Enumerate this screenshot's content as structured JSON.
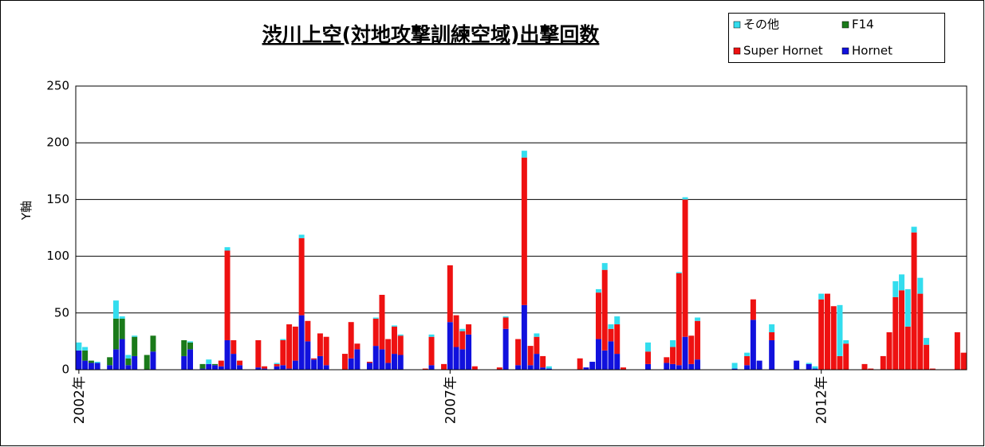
{
  "chart_data": {
    "type": "stacked-bar",
    "title": "渋川上空(対地攻撃訓練空域)出撃回数",
    "y_label": "Y軸",
    "categories": [
      "2002年",
      null,
      null,
      null,
      null,
      null,
      null,
      null,
      null,
      null,
      null,
      null,
      null,
      null,
      null,
      null,
      null,
      null,
      null,
      null,
      null,
      null,
      null,
      null,
      null,
      null,
      null,
      null,
      null,
      null,
      null,
      null,
      null,
      null,
      null,
      null,
      null,
      null,
      null,
      null,
      null,
      null,
      null,
      null,
      null,
      null,
      null,
      null,
      null,
      null,
      null,
      null,
      null,
      null,
      null,
      null,
      null,
      null,
      null,
      null,
      "2007年",
      null,
      null,
      null,
      null,
      null,
      null,
      null,
      null,
      null,
      null,
      null,
      null,
      null,
      null,
      null,
      null,
      null,
      null,
      null,
      null,
      null,
      null,
      null,
      null,
      null,
      null,
      null,
      null,
      null,
      null,
      null,
      null,
      null,
      null,
      null,
      null,
      null,
      null,
      null,
      null,
      null,
      null,
      null,
      null,
      null,
      null,
      null,
      null,
      null,
      null,
      null,
      null,
      null,
      null,
      null,
      null,
      null,
      null,
      null,
      "2012年",
      null,
      null,
      null,
      null,
      null,
      null,
      null,
      null,
      null,
      null,
      null,
      null,
      null,
      null,
      null,
      null,
      null,
      null,
      null,
      null,
      null,
      null,
      null
    ],
    "series": [
      {
        "name": "その他",
        "color": "#33ddee",
        "values": [
          7,
          3,
          0,
          1,
          0,
          0,
          16,
          2,
          3,
          1,
          0,
          0,
          0,
          0,
          0,
          0,
          0,
          0,
          1,
          0,
          0,
          4,
          0,
          0,
          3,
          0,
          0,
          0,
          0,
          0,
          0,
          0,
          1,
          1,
          0,
          0,
          3,
          0,
          0,
          0,
          0,
          0,
          0,
          0,
          0,
          0,
          0,
          0,
          1,
          0,
          0,
          1,
          1,
          0,
          0,
          0,
          0,
          2,
          0,
          0,
          0,
          0,
          2,
          0,
          0,
          0,
          0,
          0,
          0,
          1,
          0,
          0,
          6,
          0,
          3,
          0,
          2,
          0,
          0,
          0,
          0,
          0,
          0,
          0,
          3,
          6,
          4,
          7,
          0,
          0,
          0,
          0,
          8,
          0,
          0,
          0,
          6,
          1,
          2,
          0,
          3,
          0,
          0,
          0,
          0,
          0,
          5,
          0,
          3,
          0,
          0,
          0,
          7,
          0,
          0,
          0,
          0,
          0,
          1,
          2,
          5,
          0,
          0,
          45,
          3,
          0,
          0,
          0,
          0,
          0,
          0,
          0,
          14,
          14,
          33,
          5,
          14,
          6,
          0,
          0,
          0,
          0,
          0,
          0
        ]
      },
      {
        "name": "F14",
        "color": "#1a7a1a",
        "values": [
          0,
          9,
          2,
          0,
          0,
          7,
          27,
          18,
          6,
          17,
          0,
          13,
          14,
          0,
          0,
          0,
          0,
          14,
          6,
          0,
          4,
          0,
          1,
          0,
          0,
          0,
          0,
          0,
          0,
          0,
          0,
          0,
          0,
          0,
          0,
          0,
          0,
          0,
          0,
          0,
          0,
          0,
          0,
          0,
          0,
          0,
          0,
          0,
          0,
          0,
          0,
          0,
          0,
          0,
          0,
          0,
          0,
          0,
          0,
          0,
          0,
          0,
          0,
          0,
          0,
          0,
          0,
          0,
          0,
          0,
          0,
          0,
          0,
          0,
          0,
          0,
          0,
          0,
          0,
          0,
          0,
          0,
          0,
          0,
          0,
          0,
          0,
          0,
          0,
          0,
          0,
          0,
          0,
          0,
          0,
          0,
          0,
          0,
          0,
          0,
          0,
          0,
          0,
          0,
          0,
          0,
          0,
          0,
          0,
          0,
          0,
          0,
          0,
          0,
          0,
          0,
          0,
          0,
          0,
          0,
          0,
          0,
          0,
          0,
          0,
          0,
          0,
          0,
          0,
          0,
          0,
          0,
          0,
          0,
          0,
          0,
          0,
          0,
          0,
          0,
          0,
          0,
          0,
          0
        ]
      },
      {
        "name": "Super Hornet",
        "color": "#ee1111",
        "values": [
          0,
          0,
          0,
          0,
          0,
          0,
          0,
          0,
          0,
          0,
          0,
          0,
          0,
          0,
          0,
          0,
          0,
          0,
          0,
          0,
          0,
          0,
          0,
          5,
          79,
          12,
          4,
          0,
          0,
          24,
          2,
          0,
          2,
          22,
          39,
          30,
          68,
          18,
          1,
          20,
          25,
          0,
          0,
          14,
          32,
          5,
          0,
          1,
          24,
          48,
          21,
          24,
          17,
          0,
          0,
          0,
          1,
          25,
          0,
          5,
          50,
          28,
          16,
          9,
          3,
          0,
          0,
          0,
          2,
          10,
          0,
          23,
          130,
          17,
          15,
          10,
          0,
          0,
          0,
          0,
          0,
          10,
          0,
          0,
          41,
          71,
          11,
          26,
          2,
          0,
          0,
          0,
          11,
          0,
          0,
          5,
          15,
          81,
          121,
          25,
          34,
          0,
          0,
          0,
          0,
          0,
          0,
          0,
          8,
          18,
          0,
          0,
          7,
          0,
          0,
          0,
          0,
          0,
          0,
          0,
          62,
          67,
          56,
          12,
          23,
          0,
          0,
          5,
          1,
          0,
          12,
          33,
          64,
          70,
          38,
          121,
          67,
          22,
          1,
          0,
          0,
          0,
          33,
          15
        ]
      },
      {
        "name": "Hornet",
        "color": "#1111dd",
        "values": [
          17,
          8,
          6,
          6,
          0,
          4,
          18,
          27,
          4,
          12,
          0,
          0,
          16,
          0,
          0,
          0,
          0,
          12,
          18,
          0,
          1,
          5,
          4,
          3,
          26,
          14,
          4,
          0,
          0,
          2,
          1,
          0,
          3,
          4,
          1,
          8,
          48,
          25,
          9,
          12,
          4,
          0,
          0,
          0,
          10,
          18,
          0,
          6,
          21,
          18,
          6,
          14,
          13,
          0,
          0,
          0,
          0,
          4,
          0,
          0,
          42,
          20,
          18,
          31,
          0,
          0,
          0,
          0,
          0,
          36,
          0,
          4,
          57,
          4,
          14,
          2,
          1,
          0,
          0,
          0,
          0,
          0,
          2,
          7,
          27,
          17,
          25,
          14,
          0,
          0,
          0,
          0,
          5,
          0,
          0,
          6,
          5,
          4,
          29,
          5,
          9,
          0,
          0,
          0,
          0,
          0,
          1,
          0,
          4,
          44,
          8,
          0,
          26,
          0,
          0,
          0,
          8,
          0,
          5,
          1,
          0,
          0,
          0,
          0,
          0,
          0,
          0,
          0,
          0,
          0,
          0,
          0,
          0,
          0,
          0,
          0,
          0,
          0,
          0,
          0,
          0,
          0,
          0,
          0
        ]
      }
    ],
    "ylim": [
      0,
      250
    ],
    "yticks": [
      0,
      50,
      100,
      150,
      200,
      250
    ],
    "grid": true
  }
}
